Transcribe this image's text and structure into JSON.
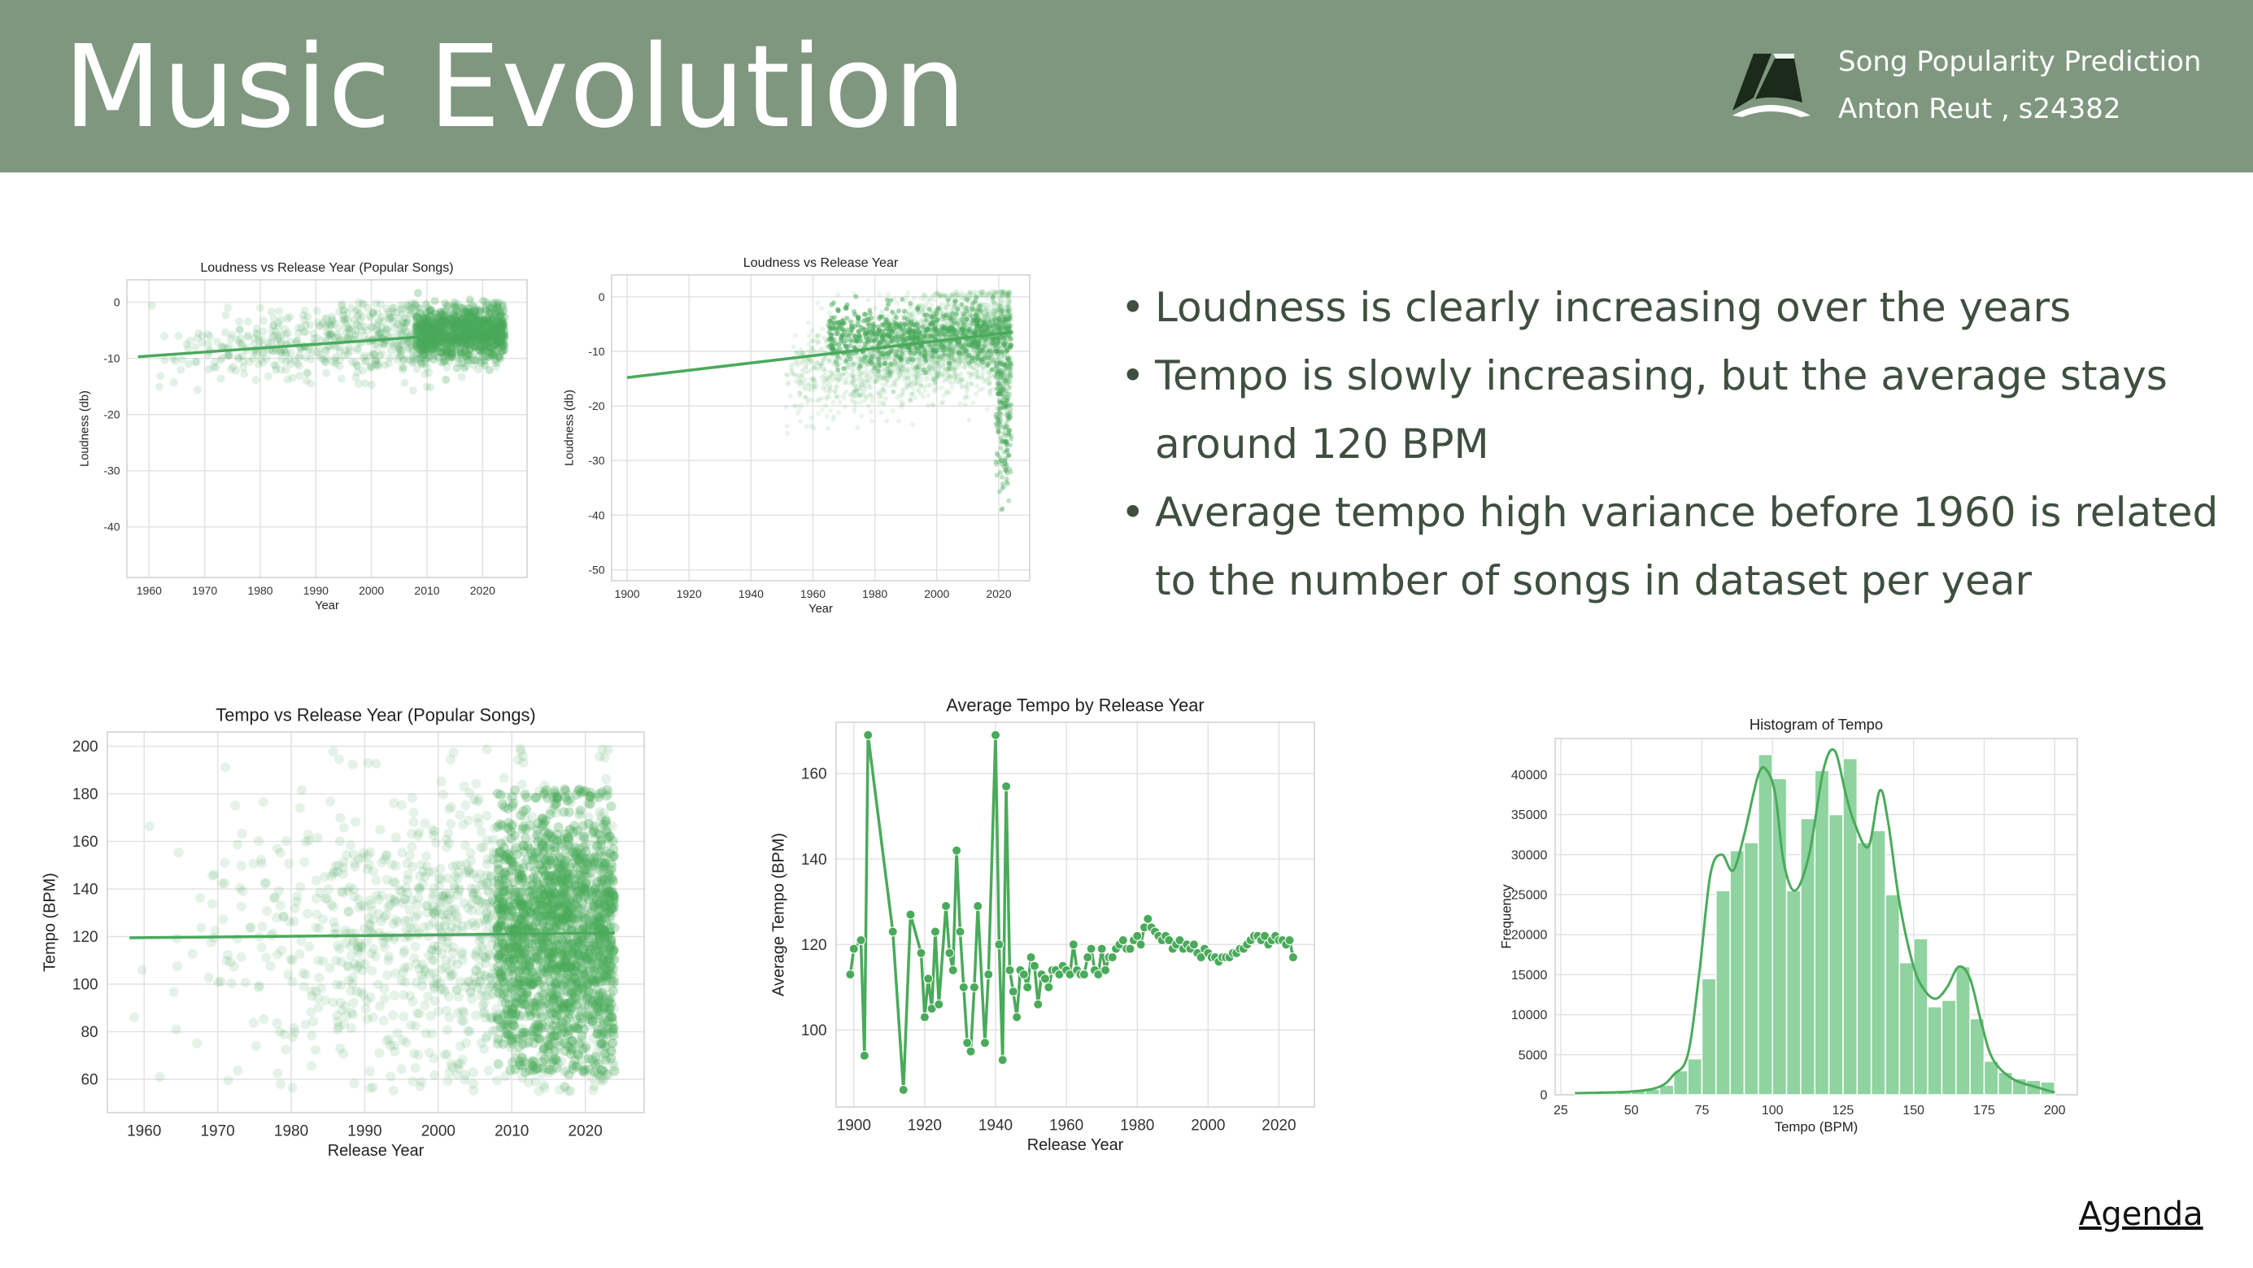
{
  "header": {
    "title": "Music Evolution",
    "subtitle_line1": "Song Popularity Prediction",
    "subtitle_line2": "Anton Reut , s24382",
    "logo_icon": "logo-mark-icon",
    "bg_color": "#7f977e"
  },
  "bullets": [
    {
      "text": "Loudness is clearly increasing over the years"
    },
    {
      "text": "Tempo is slowly increasing, but the average stays around 120 BPM"
    },
    {
      "text": "Average tempo high variance before 1960 is related to the number of songs in dataset per year"
    }
  ],
  "agenda_link": "Agenda",
  "accent_color": "#4aaa5b",
  "chart_data": [
    {
      "id": "loud_pop",
      "type": "scatter",
      "title": "Loudness vs Release Year (Popular Songs)",
      "xlabel": "Year",
      "ylabel": "Loudness (db)",
      "xlim": [
        1956,
        2028
      ],
      "ylim": [
        -49,
        4
      ],
      "xticks": [
        1960,
        1970,
        1980,
        1990,
        2000,
        2010,
        2020
      ],
      "yticks": [
        0,
        -10,
        -20,
        -30,
        -40
      ],
      "grid": true,
      "trend": [
        [
          1958,
          -9.7
        ],
        [
          2024,
          -5.1
        ]
      ],
      "scatter_summary": {
        "x_range": [
          1958,
          2024
        ],
        "center": [
          -8,
          -4.5
        ],
        "spread": 3
      }
    },
    {
      "id": "loud_all",
      "type": "scatter",
      "title": "Loudness vs Release Year",
      "xlabel": "Year",
      "ylabel": "Loudness (db)",
      "xlim": [
        1895,
        2030
      ],
      "ylim": [
        -52,
        4
      ],
      "xticks": [
        1900,
        1920,
        1940,
        1960,
        1980,
        2000,
        2020
      ],
      "yticks": [
        0,
        -10,
        -20,
        -30,
        -40,
        -50
      ],
      "grid": true,
      "trend": [
        [
          1900,
          -14.8
        ],
        [
          2024,
          -6.5
        ]
      ],
      "scatter_summary": {
        "x_range": [
          1950,
          2024
        ],
        "center": [
          -15,
          -6
        ],
        "spread": 6
      }
    },
    {
      "id": "tempo_pop",
      "type": "scatter",
      "title": "Tempo vs Release Year (Popular Songs)",
      "xlabel": "Release Year",
      "ylabel": "Tempo (BPM)",
      "xlim": [
        1955,
        2028
      ],
      "ylim": [
        46,
        206
      ],
      "xticks": [
        1960,
        1970,
        1980,
        1990,
        2000,
        2010,
        2020
      ],
      "yticks": [
        60,
        80,
        100,
        120,
        140,
        160,
        180,
        200
      ],
      "grid": true,
      "trend": [
        [
          1958,
          119.5
        ],
        [
          2024,
          121.5
        ]
      ],
      "scatter_summary": {
        "x_range": [
          1958,
          2024
        ],
        "y_range": [
          60,
          200
        ]
      }
    },
    {
      "id": "avg_tempo",
      "type": "line",
      "title": "Average Tempo by Release Year",
      "xlabel": "Release Year",
      "ylabel": "Average Tempo (BPM)",
      "xlim": [
        1895,
        2030
      ],
      "ylim": [
        82,
        172
      ],
      "xticks": [
        1900,
        1920,
        1940,
        1960,
        1980,
        2000,
        2020
      ],
      "yticks": [
        100,
        120,
        140,
        160
      ],
      "grid": true,
      "x": [
        1899,
        1900,
        1902,
        1903,
        1904,
        1911,
        1914,
        1916,
        1919,
        1920,
        1921,
        1922,
        1923,
        1924,
        1926,
        1927,
        1928,
        1929,
        1930,
        1931,
        1932,
        1933,
        1934,
        1935,
        1937,
        1938,
        1940,
        1941,
        1942,
        1943,
        1944,
        1945,
        1946,
        1947,
        1948,
        1949,
        1950,
        1951,
        1952,
        1953,
        1954,
        1955,
        1956,
        1957,
        1958,
        1959,
        1960,
        1961,
        1962,
        1963,
        1964,
        1965,
        1966,
        1967,
        1968,
        1969,
        1970,
        1971,
        1972,
        1973,
        1974,
        1975,
        1976,
        1977,
        1978,
        1979,
        1980,
        1981,
        1982,
        1983,
        1984,
        1985,
        1986,
        1987,
        1988,
        1989,
        1990,
        1991,
        1992,
        1993,
        1994,
        1995,
        1996,
        1997,
        1998,
        1999,
        2000,
        2001,
        2002,
        2003,
        2004,
        2005,
        2006,
        2007,
        2008,
        2009,
        2010,
        2011,
        2012,
        2013,
        2014,
        2015,
        2016,
        2017,
        2018,
        2019,
        2020,
        2021,
        2022,
        2023,
        2024
      ],
      "values": [
        113,
        119,
        121,
        94,
        169,
        123,
        86,
        127,
        118,
        103,
        112,
        105,
        123,
        106,
        129,
        118,
        114,
        142,
        123,
        110,
        97,
        95,
        110,
        129,
        97,
        113,
        169,
        120,
        93,
        157,
        114,
        109,
        103,
        114,
        113,
        110,
        117,
        115,
        106,
        113,
        112,
        110,
        114,
        114,
        113,
        115,
        114,
        113,
        120,
        114,
        113,
        113,
        117,
        119,
        114,
        113,
        119,
        114,
        117,
        117,
        119,
        120,
        121,
        119,
        119,
        121,
        122,
        120,
        124,
        126,
        124,
        123,
        122,
        121,
        122,
        121,
        119,
        120,
        121,
        119,
        120,
        119,
        120,
        118,
        117,
        119,
        118,
        117,
        117,
        116,
        117,
        117,
        117,
        118,
        118,
        119,
        119,
        120,
        121,
        122,
        122,
        121,
        122,
        120,
        121,
        122,
        121,
        121,
        120,
        121,
        117
      ]
    },
    {
      "id": "hist_tempo",
      "type": "bar",
      "title": "Histogram of Tempo",
      "xlabel": "Tempo (BPM)",
      "ylabel": "Frequency",
      "xlim": [
        23,
        208
      ],
      "ylim": [
        0,
        44500
      ],
      "xticks": [
        25,
        50,
        75,
        100,
        125,
        150,
        175,
        200
      ],
      "yticks": [
        0,
        5000,
        10000,
        15000,
        20000,
        25000,
        30000,
        35000,
        40000
      ],
      "grid": true,
      "bin_edges": [
        30,
        35,
        40,
        45,
        50,
        55,
        60,
        65,
        70,
        75,
        80,
        85,
        90,
        95,
        100,
        105,
        110,
        115,
        120,
        125,
        130,
        135,
        140,
        145,
        150,
        155,
        160,
        165,
        170,
        175,
        180,
        185,
        190,
        195,
        200
      ],
      "values": [
        200,
        250,
        250,
        300,
        500,
        700,
        1200,
        3000,
        4500,
        14500,
        25500,
        30500,
        31500,
        42500,
        39500,
        25500,
        34500,
        40500,
        35000,
        42000,
        31500,
        33000,
        25000,
        16500,
        19500,
        11000,
        11800,
        16000,
        9500,
        4200,
        2800,
        2000,
        1800,
        1600
      ],
      "kde": [
        [
          30,
          200
        ],
        [
          50,
          400
        ],
        [
          60,
          1000
        ],
        [
          65,
          2500
        ],
        [
          70,
          5000
        ],
        [
          74,
          15000
        ],
        [
          78,
          27500
        ],
        [
          82,
          30000
        ],
        [
          86,
          28000
        ],
        [
          90,
          32500
        ],
        [
          95,
          40000
        ],
        [
          98,
          40500
        ],
        [
          101,
          37500
        ],
        [
          104,
          29000
        ],
        [
          108,
          25500
        ],
        [
          113,
          30000
        ],
        [
          118,
          40500
        ],
        [
          122,
          43000
        ],
        [
          126,
          37500
        ],
        [
          129,
          34000
        ],
        [
          134,
          31000
        ],
        [
          138,
          38000
        ],
        [
          141,
          34000
        ],
        [
          145,
          24000
        ],
        [
          150,
          16000
        ],
        [
          154,
          13000
        ],
        [
          158,
          12000
        ],
        [
          162,
          13500
        ],
        [
          166,
          16000
        ],
        [
          170,
          14500
        ],
        [
          174,
          9000
        ],
        [
          178,
          4500
        ],
        [
          185,
          2000
        ],
        [
          195,
          800
        ],
        [
          200,
          300
        ]
      ]
    }
  ]
}
